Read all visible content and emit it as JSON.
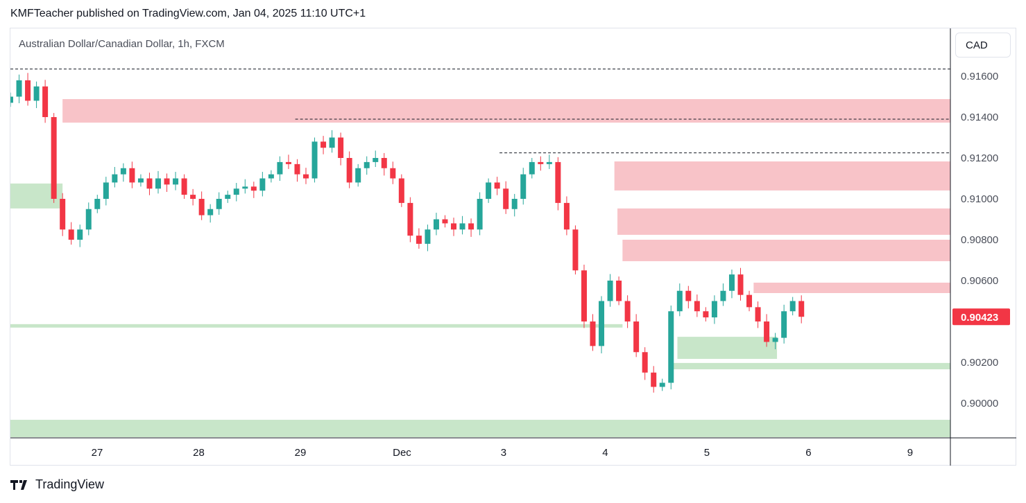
{
  "header": {
    "published": "KMFTeacher published on TradingView.com, Jan 04, 2025 11:10 UTC+1",
    "symbol": "Australian Dollar/Canadian Dollar, 1h, FXCM",
    "currency": "CAD"
  },
  "footer": {
    "brand": "TradingView"
  },
  "chart_data": {
    "type": "candlestick",
    "title": "Australian Dollar/Canadian Dollar, 1h, FXCM",
    "ylim": [
      0.8982,
      0.918
    ],
    "xlim": [
      0.147,
      9.4
    ],
    "y_ticks": [
      "0.91600",
      "0.91400",
      "0.91200",
      "0.91000",
      "0.90800",
      "0.90600",
      "0.90200",
      "0.90000"
    ],
    "y_tick_values": [
      0.916,
      0.914,
      0.912,
      0.91,
      0.908,
      0.906,
      0.902,
      0.9
    ],
    "x_ticks": [
      {
        "label": "27",
        "t": 1
      },
      {
        "label": "28",
        "t": 2
      },
      {
        "label": "29",
        "t": 3
      },
      {
        "label": "Dec",
        "t": 4
      },
      {
        "label": "3",
        "t": 5
      },
      {
        "label": "4",
        "t": 6
      },
      {
        "label": "5",
        "t": 7
      },
      {
        "label": "6",
        "t": 8
      },
      {
        "label": "9",
        "t": 9
      }
    ],
    "last_price": "0.90423",
    "last_price_value": 0.90423,
    "series_start_t": 0.147,
    "series_end_t": 7.93,
    "closes": [
      0.915,
      0.9158,
      0.9148,
      0.9155,
      0.914,
      0.91,
      0.9085,
      0.908,
      0.9085,
      0.9095,
      0.91,
      0.9108,
      0.9112,
      0.9115,
      0.9108,
      0.911,
      0.9105,
      0.911,
      0.9107,
      0.911,
      0.9102,
      0.91,
      0.9092,
      0.9095,
      0.91,
      0.9102,
      0.9105,
      0.9106,
      0.9104,
      0.911,
      0.9112,
      0.9118,
      0.9117,
      0.9112,
      0.911,
      0.9128,
      0.9125,
      0.913,
      0.912,
      0.9108,
      0.9115,
      0.9118,
      0.912,
      0.9115,
      0.911,
      0.9098,
      0.9082,
      0.9078,
      0.9085,
      0.909,
      0.9088,
      0.9085,
      0.9088,
      0.9085,
      0.91,
      0.9108,
      0.9105,
      0.9095,
      0.91,
      0.9112,
      0.9118,
      0.9117,
      0.9118,
      0.9098,
      0.9085,
      0.9065,
      0.904,
      0.9028,
      0.905,
      0.906,
      0.905,
      0.904,
      0.9025,
      0.9015,
      0.9008,
      0.901,
      0.9045,
      0.9055,
      0.905,
      0.9045,
      0.9042,
      0.905,
      0.9055,
      0.9063,
      0.9053,
      0.9047,
      0.904,
      0.903,
      0.9032,
      0.9045,
      0.905,
      0.90423
    ],
    "zones": [
      {
        "kind": "supply",
        "t0": 0.66,
        "t1": 9.4,
        "top": 0.91488,
        "bottom": 0.91373
      },
      {
        "kind": "supply",
        "t0": 6.09,
        "t1": 9.4,
        "top": 0.91183,
        "bottom": 0.91041
      },
      {
        "kind": "supply",
        "t0": 6.12,
        "t1": 9.4,
        "top": 0.90953,
        "bottom": 0.90824
      },
      {
        "kind": "supply",
        "t0": 6.17,
        "t1": 9.4,
        "top": 0.908,
        "bottom": 0.90695
      },
      {
        "kind": "supply",
        "t0": 7.46,
        "t1": 9.4,
        "top": 0.9059,
        "bottom": 0.90539
      },
      {
        "kind": "demand",
        "t0": 0.147,
        "t1": 0.66,
        "top": 0.91075,
        "bottom": 0.90953
      },
      {
        "kind": "demand",
        "t0": 0.147,
        "t1": 6.17,
        "top": 0.90387,
        "bottom": 0.9037
      },
      {
        "kind": "demand",
        "t0": 6.71,
        "t1": 7.69,
        "top": 0.90325,
        "bottom": 0.90217
      },
      {
        "kind": "demand",
        "t0": 6.67,
        "t1": 9.4,
        "top": 0.90197,
        "bottom": 0.90166
      },
      {
        "kind": "demand",
        "t0": 0.147,
        "t1": 9.4,
        "top": 0.89919,
        "bottom": 0.89834
      }
    ],
    "dashed_levels": [
      {
        "price": 0.91635,
        "t0": 0.147
      },
      {
        "price": 0.9139,
        "t0": 2.95
      },
      {
        "price": 0.91225,
        "t0": 4.96
      }
    ],
    "colors": {
      "up": "#26a69a",
      "down": "#f23645",
      "supply": "#f8c3c8",
      "demand": "#c8e6c9"
    }
  }
}
